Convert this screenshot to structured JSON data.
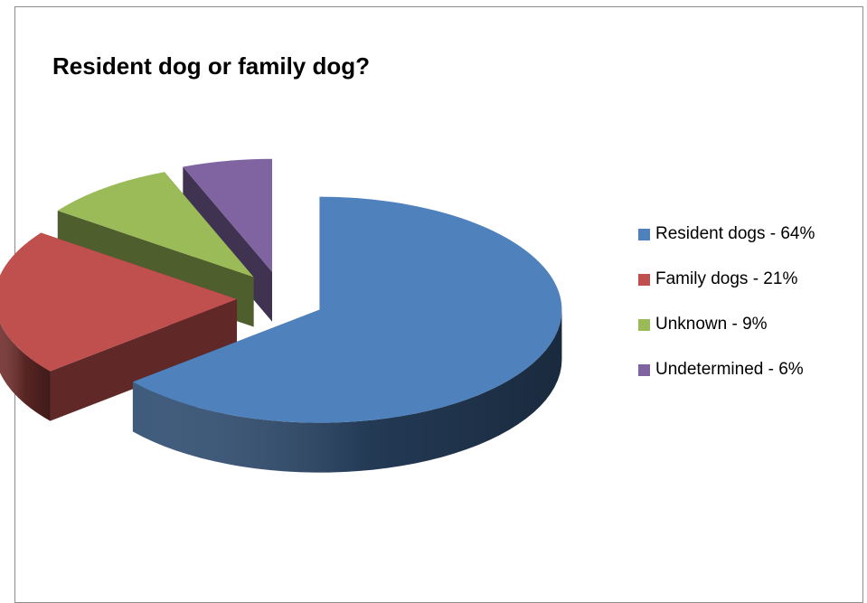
{
  "chart_data": {
    "type": "pie",
    "title": "Resident dog or family dog?",
    "categories": [
      "Resident dogs - 64%",
      "Family dogs - 21%",
      "Unknown - 9%",
      "Undetermined - 6%"
    ],
    "values": [
      64,
      21,
      9,
      6
    ],
    "colors": [
      "#4f81bd",
      "#c0504d",
      "#9bbb59",
      "#8064a2"
    ],
    "exploded": true,
    "style": "3d",
    "legend": {
      "position": "right",
      "items": [
        {
          "label": "Resident dogs - 64%",
          "color": "#4f81bd"
        },
        {
          "label": "Family dogs - 21%",
          "color": "#c0504d"
        },
        {
          "label": "Unknown - 9%",
          "color": "#9bbb59"
        },
        {
          "label": "Undetermined - 6%",
          "color": "#8064a2"
        }
      ]
    }
  }
}
